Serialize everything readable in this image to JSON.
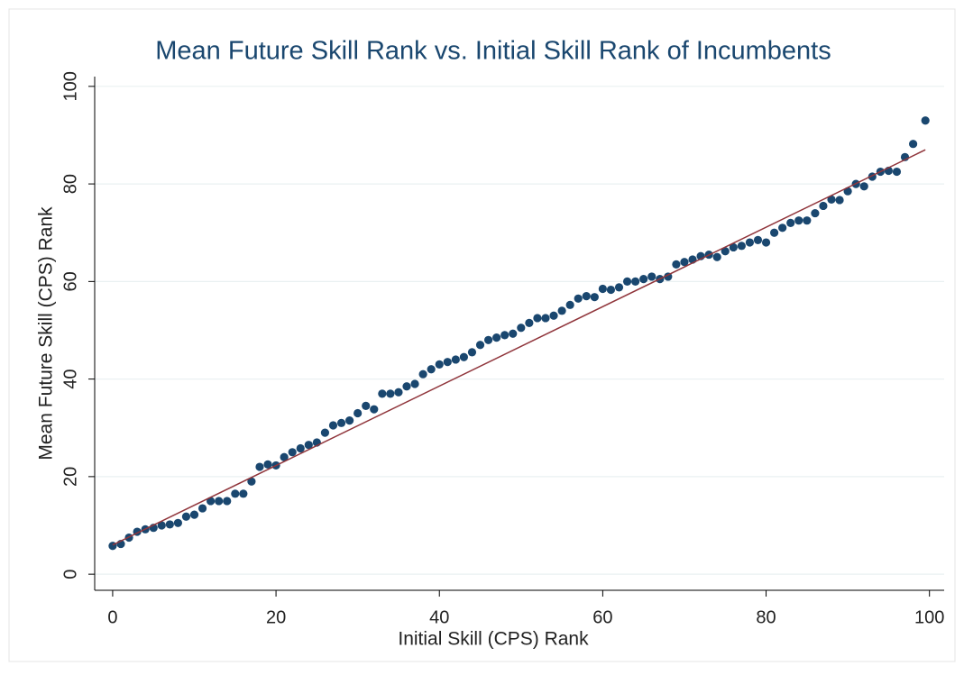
{
  "chart_data": {
    "type": "scatter",
    "title": "Mean Future Skill Rank vs. Initial Skill Rank of Incumbents",
    "x_label": "Initial Skill (CPS) Rank",
    "y_label": "Mean Future Skill (CPS) Rank",
    "xlim": [
      -2.2,
      101.8
    ],
    "ylim": [
      -3.3,
      102
    ],
    "xticks": [
      0,
      20,
      40,
      60,
      80,
      100
    ],
    "yticks": [
      0,
      20,
      40,
      60,
      80,
      100
    ],
    "grid": true,
    "series": [
      {
        "type": "scatter",
        "color": "#1a476f",
        "x": [
          0,
          1,
          2,
          3,
          4,
          5,
          6,
          7,
          8,
          9,
          10,
          11,
          12,
          13,
          14,
          15,
          16,
          17,
          18,
          19,
          20,
          21,
          22,
          23,
          24,
          25,
          26,
          27,
          28,
          29,
          30,
          31,
          32,
          33,
          34,
          35,
          36,
          37,
          38,
          39,
          40,
          41,
          42,
          43,
          44,
          45,
          46,
          47,
          48,
          49,
          50,
          51,
          52,
          53,
          54,
          55,
          56,
          57,
          58,
          59,
          60,
          61,
          62,
          63,
          64,
          65,
          66,
          67,
          68,
          69,
          70,
          71,
          72,
          73,
          74,
          75,
          76,
          77,
          78,
          79,
          80,
          81,
          82,
          83,
          84,
          85,
          86,
          87,
          88,
          89,
          90,
          91,
          92,
          93,
          94,
          95,
          96,
          97,
          98,
          99.5
        ],
        "values": [
          5.8,
          6.2,
          7.5,
          8.7,
          9.2,
          9.5,
          10,
          10.2,
          10.5,
          11.8,
          12.2,
          13.5,
          15,
          15,
          15,
          16.5,
          16.5,
          19,
          22,
          22.5,
          22.3,
          24,
          25,
          25.8,
          26.5,
          27,
          29,
          30.5,
          31,
          31.5,
          33,
          34.5,
          33.8,
          37,
          37,
          37.3,
          38.5,
          39,
          41,
          42,
          43,
          43.5,
          44,
          44.5,
          45.5,
          47,
          48,
          48.5,
          49,
          49.3,
          50.5,
          51.5,
          52.5,
          52.5,
          53,
          54,
          55.2,
          56.5,
          57,
          56.8,
          58.5,
          58.3,
          58.8,
          60,
          60,
          60.5,
          61,
          60.5,
          61,
          63.5,
          64,
          64.5,
          65.2,
          65.5,
          65,
          66.2,
          67,
          67.3,
          68,
          68.5,
          68,
          70,
          71,
          72,
          72.5,
          72.5,
          74,
          75.5,
          76.8,
          76.7,
          78.5,
          80,
          79.5,
          81.5,
          82.5,
          82.7,
          82.5,
          85.5,
          88.2,
          93
        ]
      },
      {
        "type": "line",
        "color": "#90353b",
        "x": [
          0,
          99.5
        ],
        "values": [
          6,
          87
        ]
      }
    ]
  }
}
